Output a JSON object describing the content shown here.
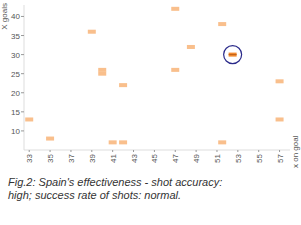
{
  "chart_data": {
    "type": "scatter",
    "title": "Fig.2: Spain's effectiveness - shot accuracy: high; success rate of shots: normal.",
    "x_label": "x on goal",
    "y_label": "X goals",
    "x": [
      33,
      35,
      39,
      40,
      40,
      41,
      42,
      42,
      47,
      47,
      48.5,
      51.5,
      51.5,
      52.5,
      57,
      57
    ],
    "values": [
      13,
      8,
      36,
      26,
      25,
      7,
      7,
      22,
      42,
      26,
      32,
      38,
      7,
      30,
      23,
      13
    ],
    "color": "#f9bf8c",
    "colors": [
      "#f9bf8c",
      "#f9bf8c",
      "#f9bf8c",
      "#f9bf8c",
      "#f9bf8c",
      "#f9bf8c",
      "#f9bf8c",
      "#f9bf8c",
      "#f9bf8c",
      "#f9bf8c",
      "#f9bf8c",
      "#f9bf8c",
      "#f9bf8c",
      "#f28a2e",
      "#f9bf8c",
      "#f9bf8c"
    ],
    "marker": "rect",
    "xlim": [
      32.5,
      58
    ],
    "ylim": [
      5,
      43
    ],
    "xticks": [
      33,
      35,
      37,
      39,
      41,
      43,
      45,
      47,
      49,
      51,
      53,
      55,
      57
    ],
    "yticks": [
      10,
      15,
      20,
      25,
      30,
      35,
      40
    ],
    "grid": false
  }
}
